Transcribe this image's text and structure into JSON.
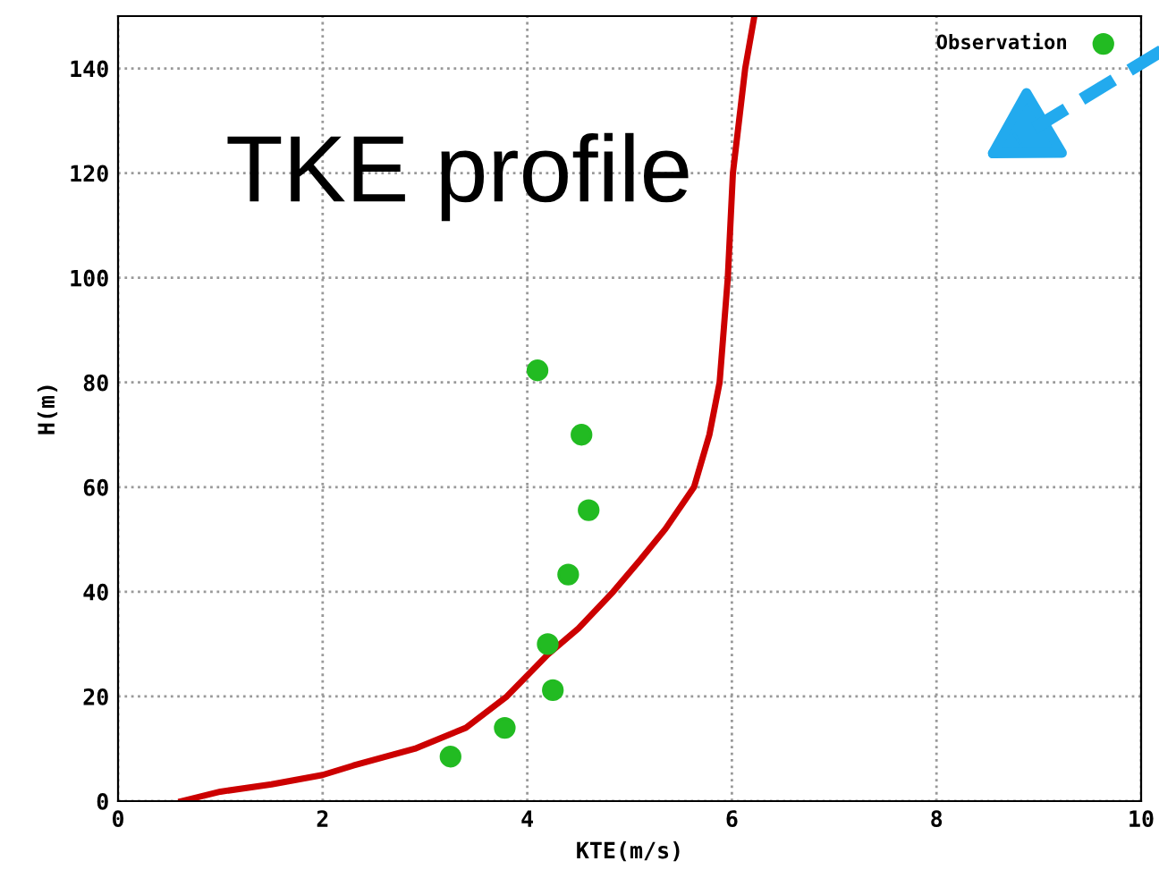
{
  "chart_data": {
    "type": "scatter",
    "title": "TKE profile",
    "xlabel": "KTE(m/s)",
    "ylabel": "H(m)",
    "xlim": [
      0,
      10
    ],
    "xticks": [
      0,
      2,
      4,
      6,
      8,
      10
    ],
    "ylim": [
      0,
      150
    ],
    "yticks": [
      0,
      20,
      40,
      60,
      80,
      100,
      120,
      140
    ],
    "grid": true,
    "legend": "top right",
    "series": [
      {
        "type": "line",
        "color": "#cc0000",
        "marker": "none",
        "line_style": "solid",
        "x": [
          0.62,
          1,
          1.5,
          2,
          2.3,
          2.9,
          3.4,
          3.8,
          4.2,
          4.5,
          4.84,
          5.1,
          5.35,
          5.63,
          5.78,
          5.88,
          5.96,
          6.01,
          6.13,
          6.22
        ],
        "values": [
          0,
          1.8,
          3.2,
          5,
          6.8,
          10,
          14,
          20,
          28,
          33,
          40,
          46,
          52,
          60,
          70,
          80,
          100,
          120,
          140,
          150
        ]
      },
      {
        "name": "Observation",
        "color": "#22bb22",
        "marker": "circle",
        "x": [
          3.25,
          3.78,
          4.25,
          4.2,
          4.4,
          4.6,
          4.53,
          4.1
        ],
        "values": [
          8.5,
          14,
          21.2,
          30,
          43.3,
          55.6,
          70,
          82.3
        ]
      }
    ]
  }
}
